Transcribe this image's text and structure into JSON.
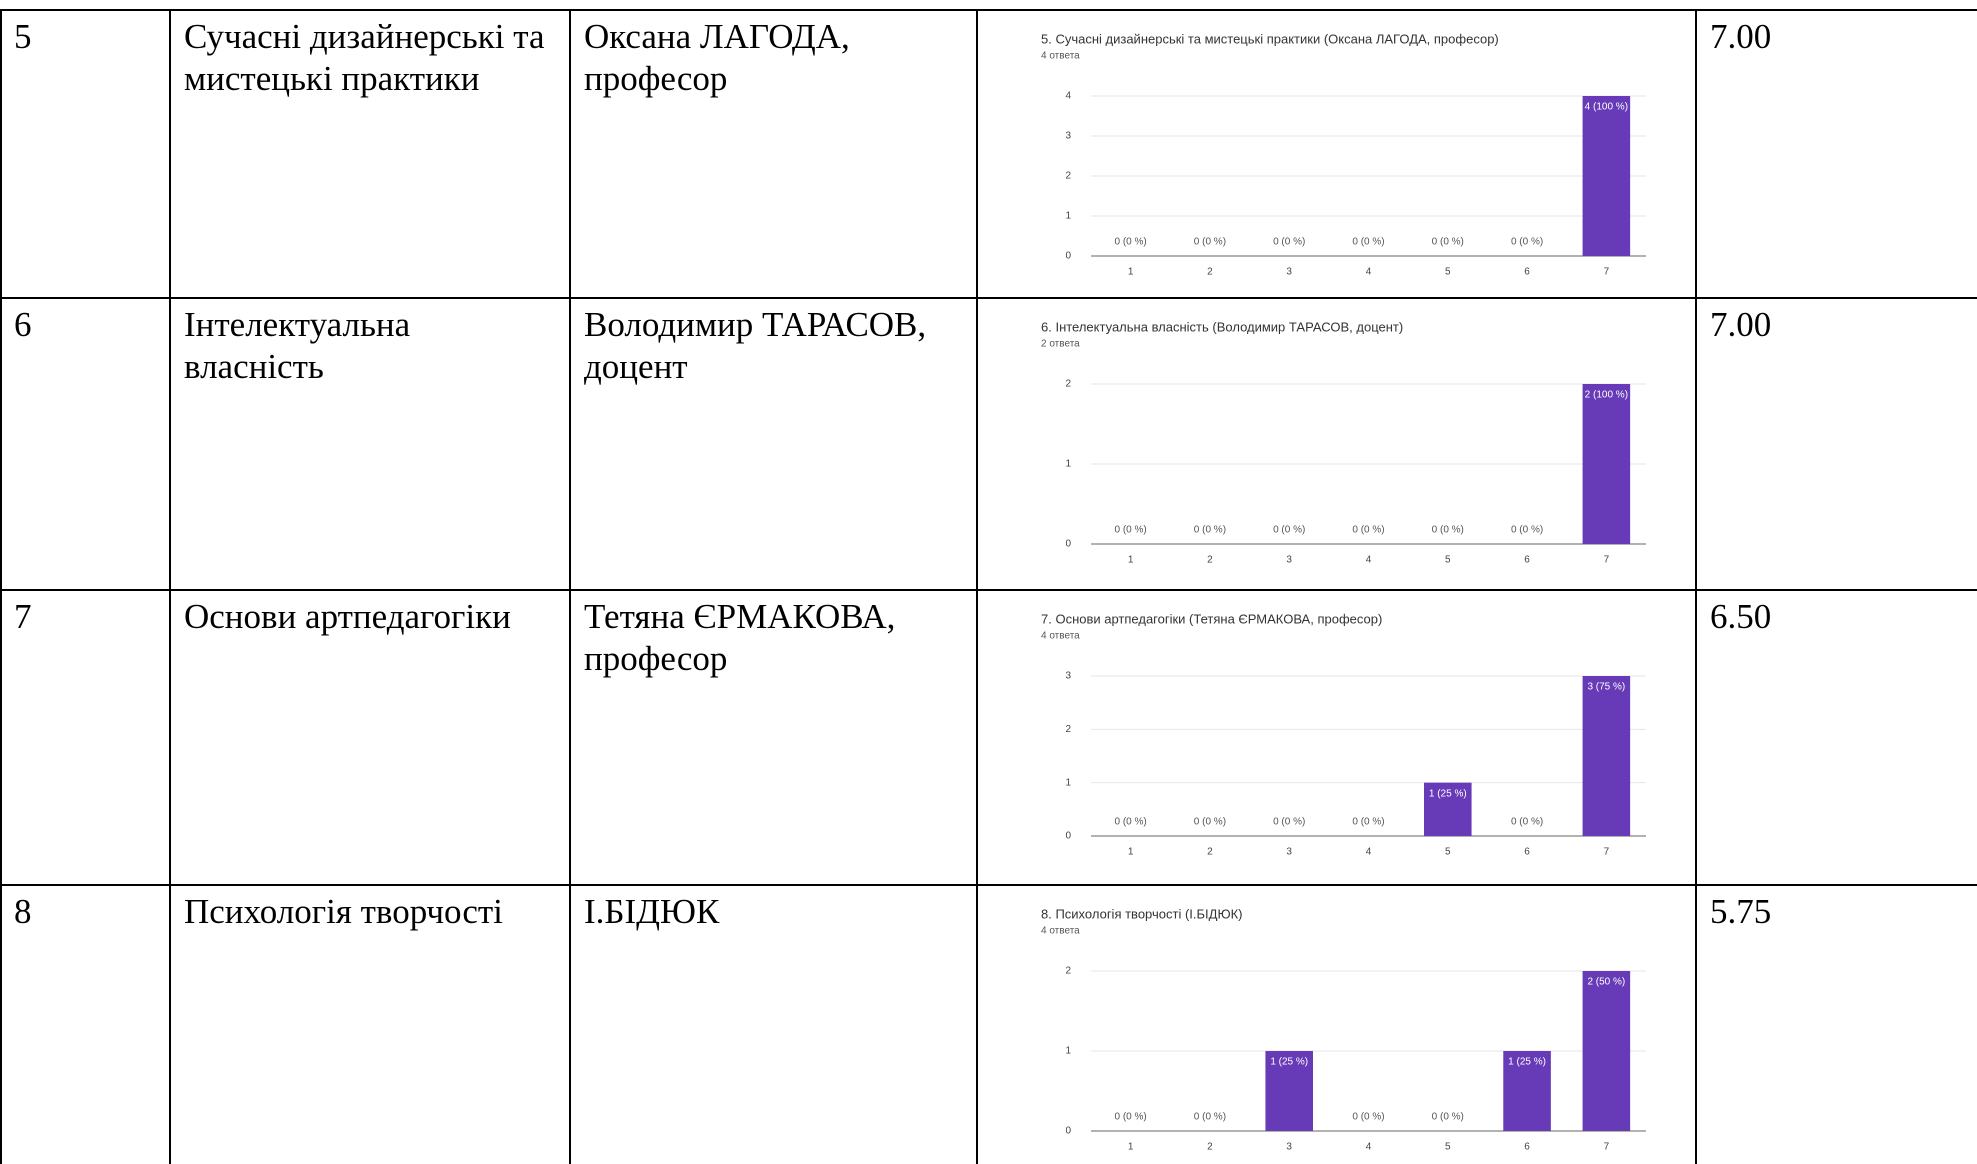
{
  "table": {
    "rows": [
      {
        "number": "5",
        "course": "Сучасні дизайнерські та мистецькі практики",
        "teacher": "Оксана ЛАГОДА, професор",
        "score": "7.00",
        "chart": {
          "type": "bar",
          "title": "5. Сучасні дизайнерські та мистецькі практики (Оксана ЛАГОДА, професор)",
          "subtitle": "4 ответа",
          "categories": [
            "1",
            "2",
            "3",
            "4",
            "5",
            "6",
            "7"
          ],
          "values": [
            0,
            0,
            0,
            0,
            0,
            0,
            4
          ],
          "value_labels": [
            "0 (0 %)",
            "0 (0 %)",
            "0 (0 %)",
            "0 (0 %)",
            "0 (0 %)",
            "0 (0 %)",
            "4 (100 %)"
          ],
          "color": "#673ab7",
          "ylim": [
            0,
            4
          ],
          "yticks": [
            0,
            1,
            2,
            3,
            4
          ],
          "grid": true
        }
      },
      {
        "number": "6",
        "course": "Інтелектуальна власність",
        "teacher": "Володимир ТАРАСОВ, доцент",
        "score": "7.00",
        "chart": {
          "type": "bar",
          "title": "6. Інтелектуальна власність (Володимир ТАРАСОВ, доцент)",
          "subtitle": "2 ответа",
          "categories": [
            "1",
            "2",
            "3",
            "4",
            "5",
            "6",
            "7"
          ],
          "values": [
            0,
            0,
            0,
            0,
            0,
            0,
            2
          ],
          "value_labels": [
            "0 (0 %)",
            "0 (0 %)",
            "0 (0 %)",
            "0 (0 %)",
            "0 (0 %)",
            "0 (0 %)",
            "2 (100 %)"
          ],
          "color": "#673ab7",
          "ylim": [
            0,
            2
          ],
          "yticks": [
            0,
            1,
            2
          ],
          "grid": true
        }
      },
      {
        "number": "7",
        "course": "Основи артпедагогіки",
        "teacher": "Тетяна ЄРМАКОВА, професор",
        "score": "6.50",
        "chart": {
          "type": "bar",
          "title": "7. Основи артпедагогіки (Тетяна ЄРМАКОВА, професор)",
          "subtitle": "4 ответа",
          "categories": [
            "1",
            "2",
            "3",
            "4",
            "5",
            "6",
            "7"
          ],
          "values": [
            0,
            0,
            0,
            0,
            1,
            0,
            3
          ],
          "value_labels": [
            "0 (0 %)",
            "0 (0 %)",
            "0 (0 %)",
            "0 (0 %)",
            "1 (25 %)",
            "0 (0 %)",
            "3 (75 %)"
          ],
          "color": "#673ab7",
          "ylim": [
            0,
            3
          ],
          "yticks": [
            0,
            1,
            2,
            3
          ],
          "grid": true
        }
      },
      {
        "number": "8",
        "course": "Психологія творчості",
        "teacher": "І.БІДЮК",
        "score": "5.75",
        "chart": {
          "type": "bar",
          "title": "8. Психологія творчості (І.БІДЮК)",
          "subtitle": "4 ответа",
          "categories": [
            "1",
            "2",
            "3",
            "4",
            "5",
            "6",
            "7"
          ],
          "values": [
            0,
            0,
            1,
            0,
            0,
            1,
            2
          ],
          "value_labels": [
            "0 (0 %)",
            "0 (0 %)",
            "1 (25 %)",
            "0 (0 %)",
            "0 (0 %)",
            "1 (25 %)",
            "2 (50 %)"
          ],
          "color": "#673ab7",
          "ylim": [
            0,
            2
          ],
          "yticks": [
            0,
            1,
            2
          ],
          "grid": true
        }
      }
    ]
  }
}
